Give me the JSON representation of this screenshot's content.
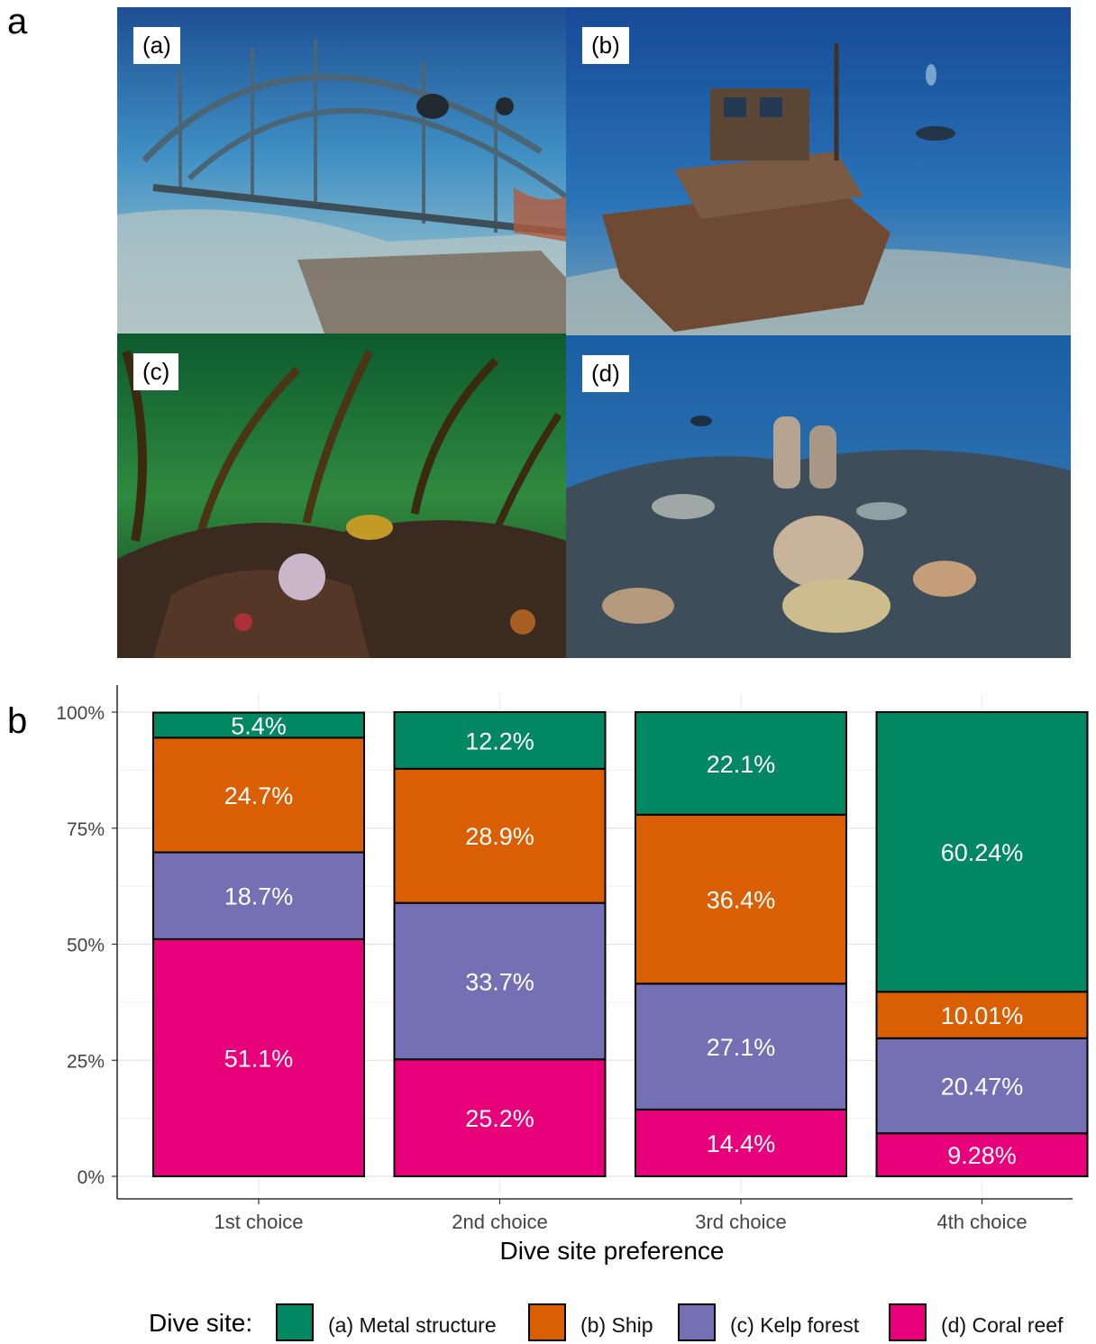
{
  "panels": {
    "a_letter": "a",
    "b_letter": "b"
  },
  "photos": [
    {
      "label": "(a)",
      "subject": "metal-structure-wreck"
    },
    {
      "label": "(b)",
      "subject": "ship-wreck"
    },
    {
      "label": "(c)",
      "subject": "kelp-forest"
    },
    {
      "label": "(d)",
      "subject": "coral-reef"
    }
  ],
  "colors": {
    "metal": "#028763",
    "ship": "#d95f02",
    "kelp": "#7570b3",
    "coral": "#e7007a"
  },
  "chart_data": {
    "type": "bar",
    "stacked": true,
    "xlabel": "Dive site preference",
    "ylabel": "",
    "ylim": [
      0,
      100
    ],
    "yticks": [
      "0%",
      "25%",
      "50%",
      "75%",
      "100%"
    ],
    "grid": true,
    "legend_position": "bottom",
    "categories": [
      "1st choice",
      "2nd choice",
      "3rd choice",
      "4th choice"
    ],
    "series": [
      {
        "name": "(d) Coral reef",
        "color": "#e7007a",
        "values": [
          51.1,
          25.2,
          14.4,
          9.28
        ],
        "labels": [
          "51.1%",
          "25.2%",
          "14.4%",
          "9.28%"
        ]
      },
      {
        "name": "(c) Kelp forest",
        "color": "#7570b3",
        "values": [
          18.7,
          33.7,
          27.1,
          20.47
        ],
        "labels": [
          "18.7%",
          "33.7%",
          "27.1%",
          "20.47%"
        ]
      },
      {
        "name": "(b) Ship",
        "color": "#d95f02",
        "values": [
          24.7,
          28.9,
          36.4,
          10.01
        ],
        "labels": [
          "24.7%",
          "28.9%",
          "36.4%",
          "10.01%"
        ]
      },
      {
        "name": "(a) Metal structure",
        "color": "#028763",
        "values": [
          5.4,
          12.2,
          22.1,
          60.24
        ],
        "labels": [
          "5.4%",
          "12.2%",
          "22.1%",
          "60.24%"
        ]
      }
    ]
  },
  "legend": {
    "title": "Dive site:",
    "items": [
      {
        "label": "(a) Metal structure",
        "color": "#028763"
      },
      {
        "label": "(b) Ship",
        "color": "#d95f02"
      },
      {
        "label": "(c) Kelp forest",
        "color": "#7570b3"
      },
      {
        "label": "(d) Coral reef",
        "color": "#e7007a"
      }
    ]
  }
}
